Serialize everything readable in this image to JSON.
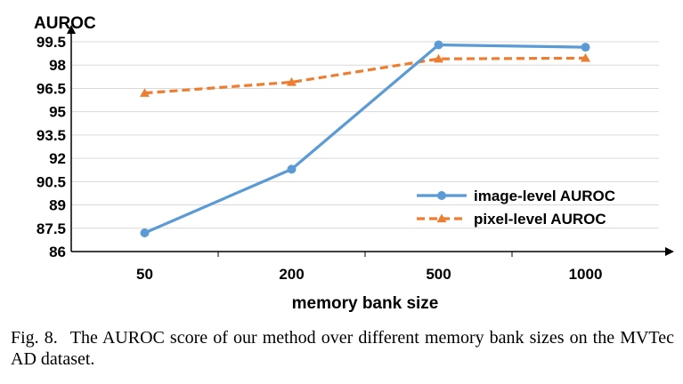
{
  "chart_data": {
    "type": "line",
    "title": "",
    "ylabel": "AUROC",
    "xlabel": "memory bank size",
    "categories": [
      "50",
      "200",
      "500",
      "1000"
    ],
    "yticks": [
      "86",
      "87.5",
      "89",
      "90.5",
      "92",
      "93.5",
      "95",
      "96.5",
      "98",
      "99.5"
    ],
    "ylim": [
      86,
      99.5
    ],
    "grid": "horizontal",
    "legend_position": "lower-right",
    "series": [
      {
        "name": "image-level AUROC",
        "values": [
          87.2,
          91.3,
          99.3,
          99.15
        ],
        "color": "#5B9BD5",
        "line_style": "solid",
        "marker": "circle"
      },
      {
        "name": "pixel-level AUROC",
        "values": [
          96.2,
          96.9,
          98.4,
          98.45
        ],
        "color": "#ED7D31",
        "line_style": "dashed",
        "marker": "triangle"
      }
    ]
  },
  "caption": {
    "prefix": "Fig. 8.",
    "text": "The AUROC score of our method over different memory bank sizes on the MVTec AD dataset."
  }
}
